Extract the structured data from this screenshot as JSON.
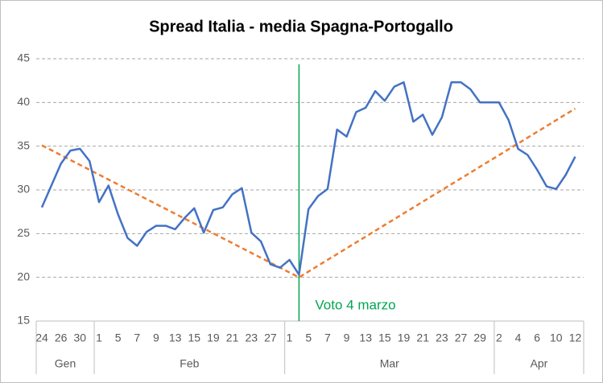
{
  "chart_data": {
    "type": "line",
    "title": "Spread Italia - media Spagna-Portogallo",
    "categories": [
      "24",
      null,
      "26",
      null,
      "30",
      null,
      "1",
      null,
      "5",
      null,
      "7",
      null,
      "9",
      null,
      "13",
      null,
      "15",
      null,
      "19",
      null,
      "21",
      null,
      "23",
      null,
      "27",
      null,
      "1",
      null,
      "5",
      null,
      "7",
      null,
      "9",
      null,
      "13",
      null,
      "15",
      null,
      "19",
      null,
      "21",
      null,
      "23",
      null,
      "27",
      null,
      "29",
      null,
      "2",
      null,
      "4",
      null,
      "6",
      null,
      "10",
      null,
      "12"
    ],
    "groups": [
      {
        "label": "Gen",
        "start": 0,
        "end": 5
      },
      {
        "label": "Feb",
        "start": 6,
        "end": 25
      },
      {
        "label": "Mar",
        "start": 26,
        "end": 47
      },
      {
        "label": "Apr",
        "start": 48,
        "end": 56
      }
    ],
    "series": [
      {
        "color": "#4472c4",
        "values": [
          28,
          30.5,
          33,
          34.5,
          34.7,
          33.3,
          28.6,
          30.5,
          27.2,
          24.5,
          23.6,
          25.2,
          25.9,
          25.9,
          25.5,
          26.8,
          27.9,
          25.1,
          27.7,
          28,
          29.5,
          30.2,
          25.1,
          24.1,
          21.5,
          21.1,
          22,
          20.3,
          27.8,
          29.3,
          30.1,
          36.9,
          36.1,
          38.9,
          39.4,
          41.3,
          40.2,
          41.8,
          42.3,
          37.8,
          38.6,
          36.3,
          38.3,
          42.3,
          42.3,
          41.5,
          40,
          40,
          40,
          38,
          34.7,
          34,
          32.3,
          30.4,
          30.1,
          31.7,
          33.8
        ]
      },
      {
        "kind": "trend",
        "color": "#ed7d31",
        "x": [
          0,
          27,
          56
        ],
        "values": [
          35.1,
          20,
          39.3
        ]
      }
    ],
    "annotation": {
      "text": "Voto 4 marzo",
      "x": 27,
      "color": "#00a651"
    },
    "ylim": [
      15,
      45
    ],
    "yticks": [
      15,
      20,
      25,
      30,
      35,
      40,
      45
    ],
    "grid": true
  }
}
